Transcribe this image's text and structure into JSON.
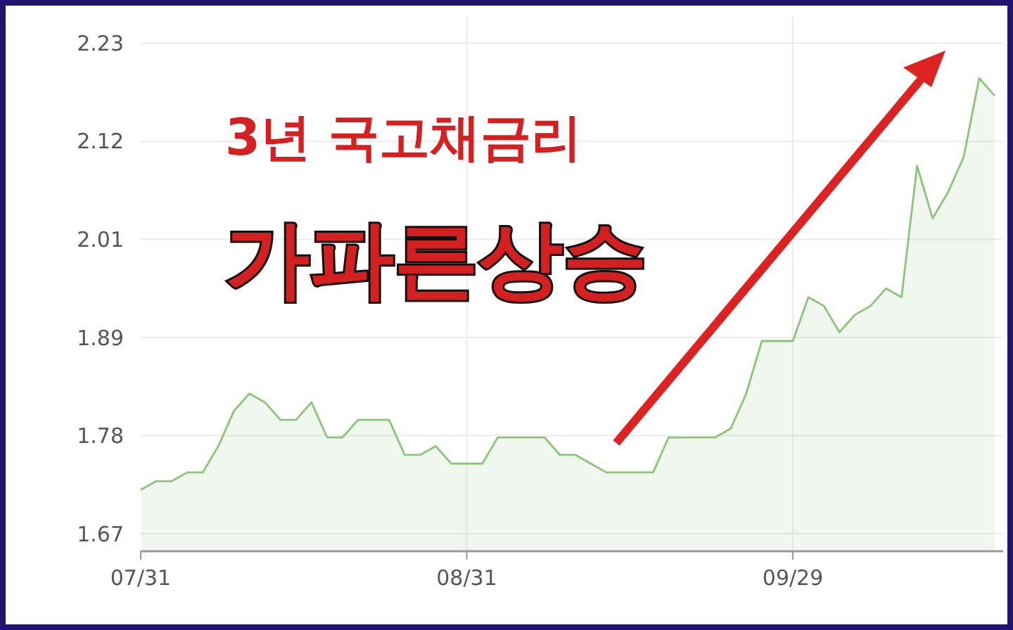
{
  "chart_data": {
    "type": "area",
    "title": "3년 국고채금리",
    "subtitle": "가파른상승",
    "categories": [
      "07/31",
      null,
      null,
      null,
      null,
      null,
      null,
      null,
      null,
      null,
      null,
      null,
      null,
      null,
      null,
      null,
      null,
      null,
      null,
      null,
      null,
      "08/31",
      null,
      null,
      null,
      null,
      null,
      null,
      null,
      null,
      null,
      null,
      null,
      null,
      null,
      null,
      null,
      null,
      null,
      null,
      null,
      null,
      "09/29",
      null,
      null,
      null,
      null,
      null,
      null,
      null,
      null,
      null,
      null,
      null,
      null,
      null
    ],
    "series": [
      {
        "color": "#8cc47a",
        "values": [
          1.72,
          1.73,
          1.73,
          1.74,
          1.74,
          1.77,
          1.81,
          1.83,
          1.82,
          1.8,
          1.8,
          1.82,
          1.78,
          1.78,
          1.8,
          1.8,
          1.8,
          1.76,
          1.76,
          1.77,
          1.75,
          1.75,
          1.75,
          1.78,
          1.78,
          1.78,
          1.78,
          1.76,
          1.76,
          1.75,
          1.74,
          1.74,
          1.74,
          1.74,
          1.78,
          1.78,
          1.78,
          1.78,
          1.79,
          1.83,
          1.89,
          1.89,
          1.89,
          1.94,
          1.93,
          1.9,
          1.92,
          1.93,
          1.95,
          1.94,
          2.09,
          2.03,
          2.06,
          2.1,
          2.19,
          2.17
        ]
      }
    ],
    "ylim": [
      1.65,
      2.26
    ],
    "yticks": [
      1.67,
      {
        "value": 1.782,
        "label": "1.78"
      },
      {
        "value": 1.894,
        "label": "1.89"
      },
      {
        "value": 2.006,
        "label": "2.01"
      },
      {
        "value": 2.118,
        "label": "2.12"
      },
      2.23
    ],
    "grid": true
  }
}
